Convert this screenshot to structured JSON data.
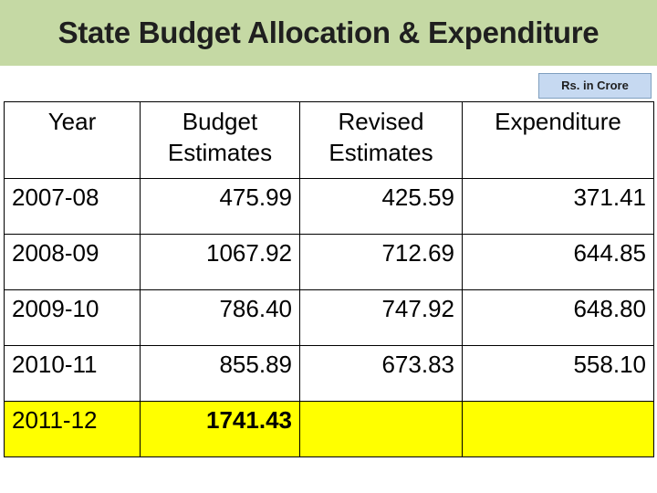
{
  "title": "State Budget Allocation & Expenditure",
  "unit_label": "Rs. in Crore",
  "table": {
    "headers": [
      [
        "Year"
      ],
      [
        "Budget",
        "Estimates"
      ],
      [
        "Revised",
        "Estimates"
      ],
      [
        "Expenditure"
      ]
    ],
    "rows": [
      [
        "2007-08",
        "475.99",
        "425.59",
        "371.41"
      ],
      [
        "2008-09",
        "1067.92",
        "712.69",
        "644.85"
      ],
      [
        "2009-10",
        "786.40",
        "747.92",
        "648.80"
      ],
      [
        "2010-11",
        "855.89",
        "673.83",
        "558.10"
      ],
      [
        "2011-12",
        "1741.43",
        "",
        ""
      ]
    ]
  },
  "colors": {
    "title_background": "#c5d9a4",
    "unit_badge_background": "#c6d9f1",
    "highlight_row": "#ffff00"
  }
}
